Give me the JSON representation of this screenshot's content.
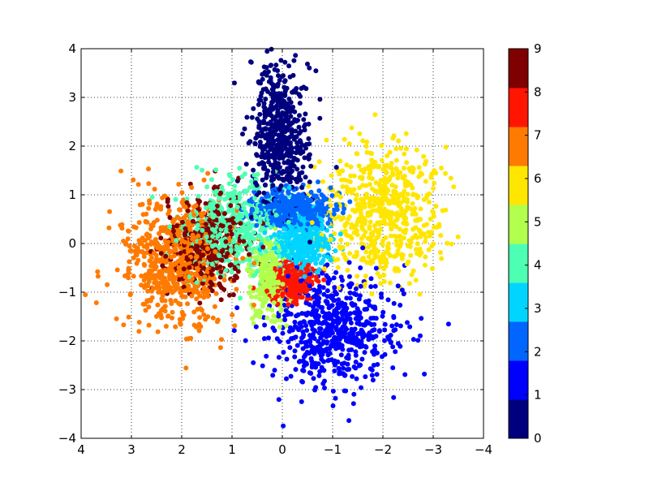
{
  "chart_data": {
    "type": "scatter",
    "title": "",
    "xlabel": "",
    "ylabel": "",
    "xlim": [
      4,
      -4
    ],
    "ylim": [
      -4,
      4
    ],
    "x_axis_inverted": true,
    "grid": true,
    "x_ticks": [
      "4",
      "3",
      "2",
      "1",
      "0",
      "−1",
      "−2",
      "−3",
      "−4"
    ],
    "y_ticks": [
      "4",
      "3",
      "2",
      "1",
      "0",
      "−1",
      "−2",
      "−3",
      "−4"
    ],
    "colorbar": {
      "ticks": [
        "0",
        "1",
        "2",
        "3",
        "4",
        "5",
        "6",
        "7",
        "8",
        "9"
      ],
      "colors": [
        "#00007f",
        "#0000ff",
        "#0066ff",
        "#00d5ff",
        "#4dffb2",
        "#b2ff4d",
        "#ffe600",
        "#ff7a00",
        "#ff1500",
        "#7f0000"
      ]
    },
    "clusters": [
      {
        "label": 0,
        "color": "#00007f",
        "center": [
          0.05,
          2.2
        ],
        "spread": [
          0.28,
          0.75
        ],
        "count": 520
      },
      {
        "label": 1,
        "color": "#0000ff",
        "center": [
          -1.05,
          -1.75
        ],
        "spread": [
          0.6,
          0.6
        ],
        "count": 600
      },
      {
        "label": 2,
        "color": "#0066ff",
        "center": [
          -0.2,
          0.7
        ],
        "spread": [
          0.38,
          0.18
        ],
        "count": 480
      },
      {
        "label": 3,
        "color": "#00d5ff",
        "center": [
          -0.4,
          0.0
        ],
        "spread": [
          0.3,
          0.3
        ],
        "count": 350
      },
      {
        "label": 4,
        "color": "#4dffb2",
        "center": [
          1.0,
          0.35
        ],
        "spread": [
          0.48,
          0.5
        ],
        "count": 450
      },
      {
        "label": 5,
        "color": "#b2ff4d",
        "center": [
          0.25,
          -0.75
        ],
        "spread": [
          0.15,
          0.35
        ],
        "count": 280
      },
      {
        "label": 6,
        "color": "#ffe600",
        "center": [
          -2.0,
          0.6
        ],
        "spread": [
          0.55,
          0.7
        ],
        "count": 600
      },
      {
        "label": 7,
        "color": "#ff7a00",
        "center": [
          2.1,
          -0.4
        ],
        "spread": [
          0.55,
          0.65
        ],
        "count": 650
      },
      {
        "label": 8,
        "color": "#ff1500",
        "center": [
          -0.15,
          -0.8
        ],
        "spread": [
          0.22,
          0.2
        ],
        "count": 300
      },
      {
        "label": 9,
        "color": "#7f0000",
        "center": [
          1.5,
          0.0
        ],
        "spread": [
          0.4,
          0.45
        ],
        "count": 380
      }
    ]
  }
}
